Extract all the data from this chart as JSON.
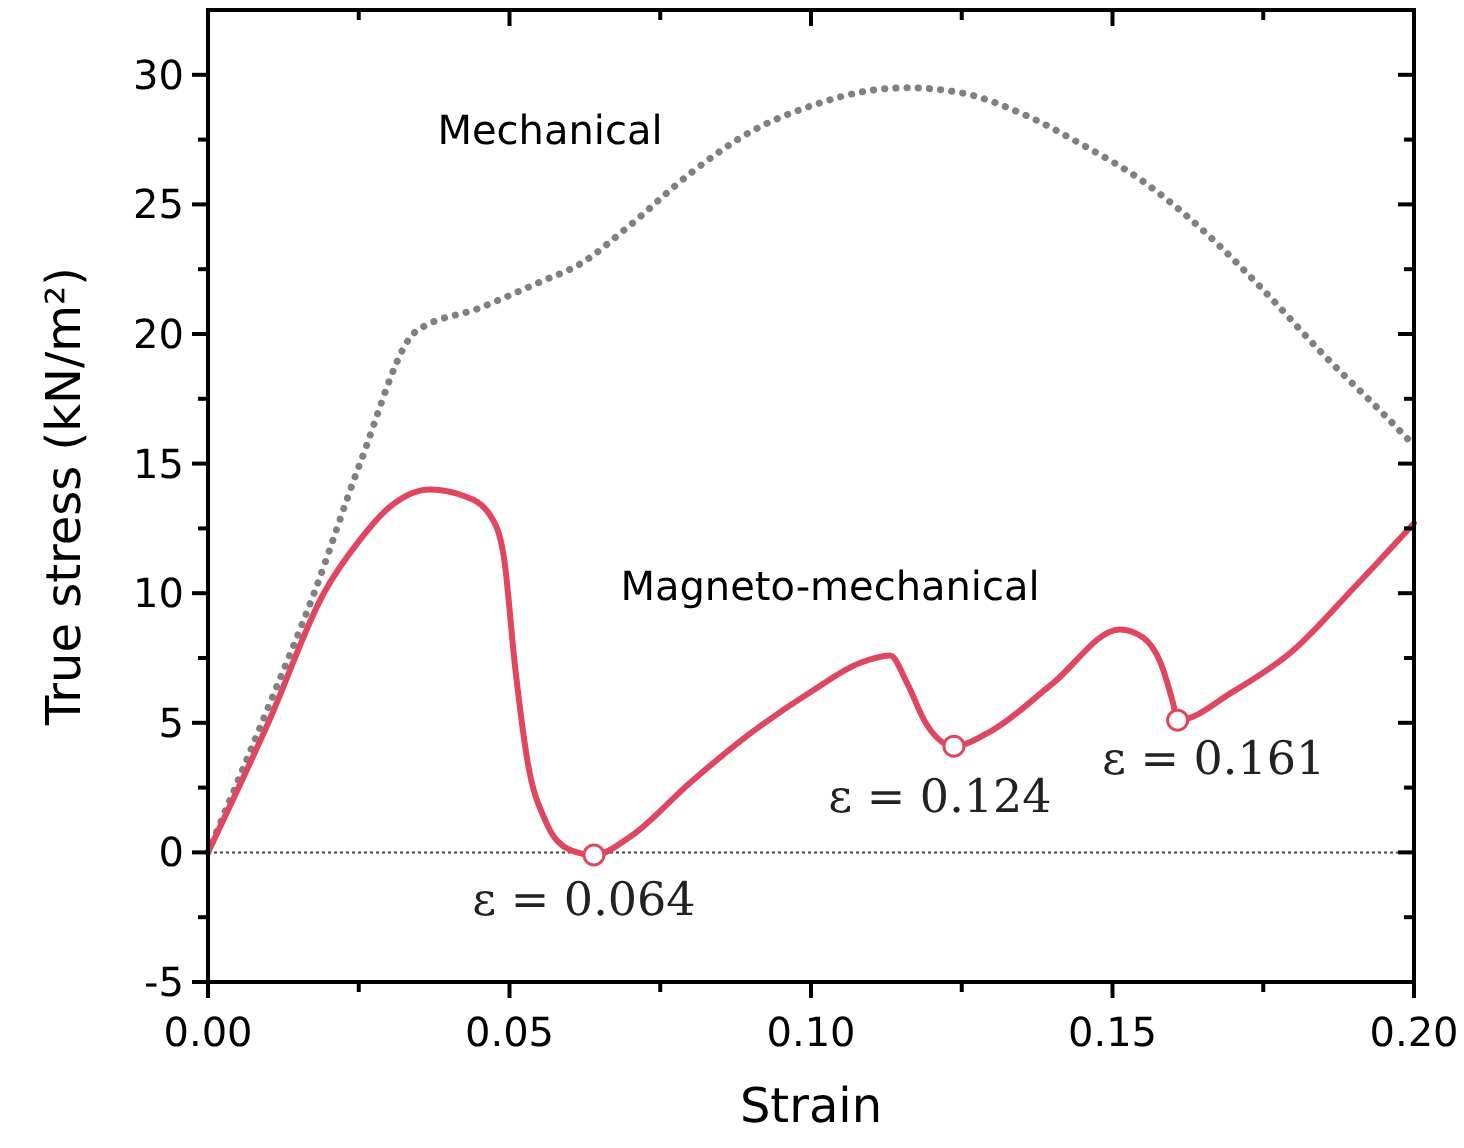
{
  "chart_data": {
    "type": "line",
    "xlabel": "Strain",
    "ylabel": "True stress (kN/m²)",
    "xlim": [
      0,
      0.2
    ],
    "ylim": [
      -5,
      32.5
    ],
    "xticks": [
      {
        "value": 0,
        "label": "0.00"
      },
      {
        "value": 0.025,
        "label": null
      },
      {
        "value": 0.05,
        "label": "0.05"
      },
      {
        "value": 0.075,
        "label": null
      },
      {
        "value": 0.1,
        "label": "0.10"
      },
      {
        "value": 0.125,
        "label": null
      },
      {
        "value": 0.15,
        "label": "0.15"
      },
      {
        "value": 0.175,
        "label": null
      },
      {
        "value": 0.2,
        "label": "0.20"
      }
    ],
    "yticks": [
      -5,
      {
        "value": -2.5,
        "label": null
      },
      0,
      {
        "value": 2.5,
        "label": null
      },
      5,
      {
        "value": 7.5,
        "label": null
      },
      10,
      {
        "value": 12.5,
        "label": null
      },
      15,
      {
        "value": 17.5,
        "label": null
      },
      20,
      {
        "value": 22.5,
        "label": null
      },
      25,
      {
        "value": 27.5,
        "label": null
      },
      30
    ],
    "grid": false,
    "series": [
      {
        "name": "Mechanical",
        "line_style": "dotted",
        "marker": "none",
        "color": "#808080",
        "x": [
          0,
          0.01,
          0.0176,
          0.0252,
          0.0345,
          0.045,
          0.055,
          0.0617,
          0.07,
          0.08,
          0.09,
          0.1,
          0.11,
          0.116,
          0.125,
          0.135,
          0.145,
          0.155,
          0.165,
          0.175,
          0.185,
          0.195,
          0.2
        ],
        "values": [
          0,
          5.6,
          10,
          15,
          20.1,
          21,
          22,
          22.7,
          24.2,
          26.2,
          27.8,
          28.8,
          29.4,
          29.5,
          29.3,
          28.5,
          27.3,
          25.9,
          24,
          21.7,
          19.2,
          16.9,
          15.7
        ]
      },
      {
        "name": "Magneto-mechanical",
        "line_style": "solid",
        "marker": "none",
        "color": "#e0475e",
        "x": [
          0,
          0.01,
          0.0192,
          0.025,
          0.03,
          0.0368,
          0.043,
          0.0468,
          0.049,
          0.051,
          0.053,
          0.056,
          0.06,
          0.064,
          0.07,
          0.08,
          0.09,
          0.1,
          0.108,
          0.1131,
          0.116,
          0.119,
          0.1237,
          0.13,
          0.14,
          0.1512,
          0.155,
          0.158,
          0.16,
          0.1608,
          0.17,
          0.18,
          0.19,
          0.2
        ],
        "values": [
          0,
          5,
          10,
          12,
          13.3,
          14,
          13.7,
          13,
          11.5,
          7,
          3.5,
          1.2,
          0.1,
          -0.1,
          0.6,
          2.7,
          4.6,
          6.2,
          7.3,
          7.6,
          6.5,
          5,
          4.1,
          4.7,
          6.5,
          8.6,
          8.3,
          7.3,
          5.8,
          5.1,
          6.2,
          7.8,
          10.2,
          12.7
        ]
      },
      {
        "type": "scatter",
        "marker": "circle",
        "color": "#e0475e",
        "x": [
          0.064,
          0.1237,
          0.1608
        ],
        "values": [
          -0.1,
          4.1,
          5.1
        ]
      }
    ],
    "ref_lines": [
      {
        "axis": "y",
        "value": 0,
        "color": "#404040",
        "line_style": "dotted"
      }
    ],
    "annotations": [
      {
        "text": "ε = 0.064",
        "x": 0.064,
        "y": -0.1
      },
      {
        "text": "ε = 0.124",
        "x": 0.1237,
        "y": 4.1
      },
      {
        "text": "ε = 0.161",
        "x": 0.1608,
        "y": 5.1
      }
    ]
  }
}
